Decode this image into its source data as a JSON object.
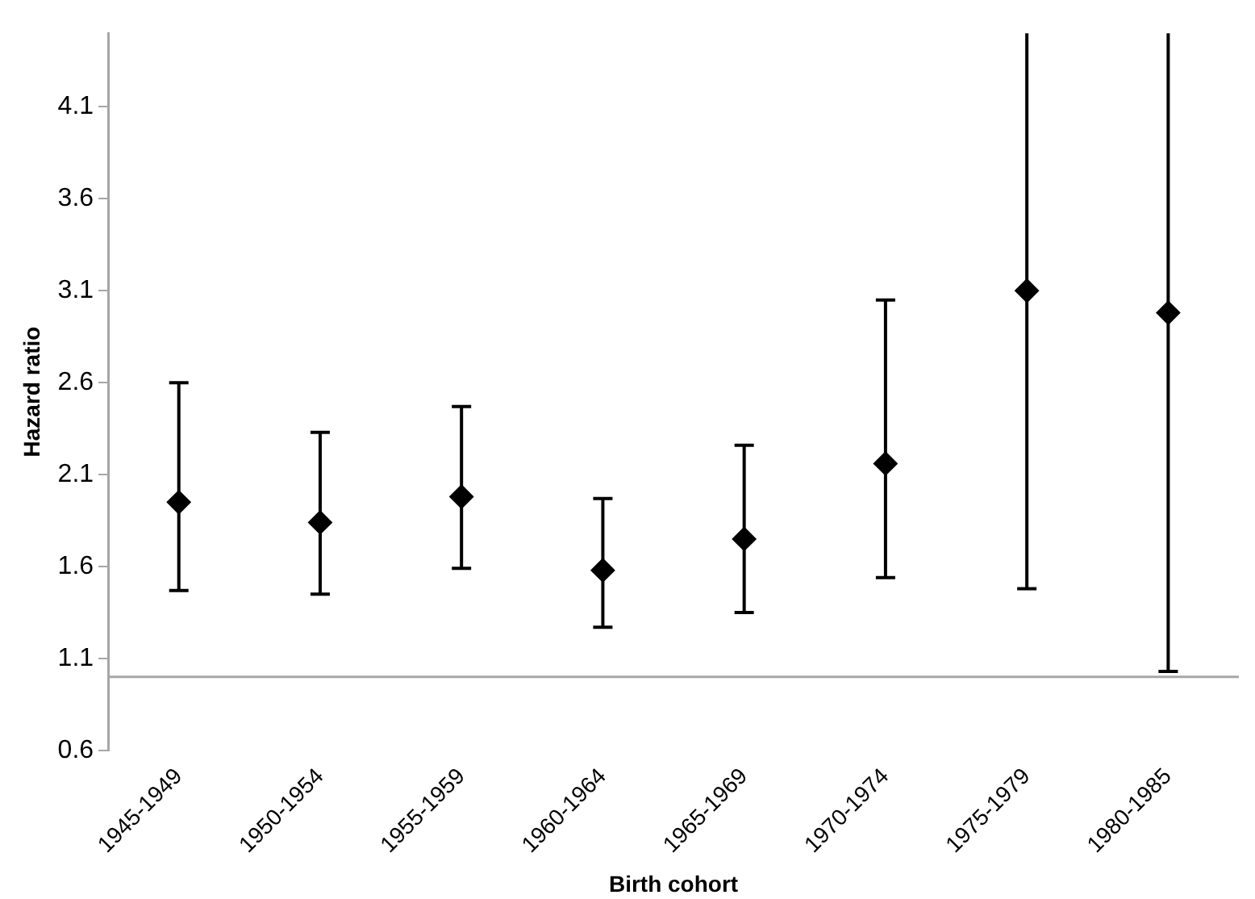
{
  "chart_data": {
    "type": "scatter",
    "xlabel": "Birth cohort",
    "ylabel": "Hazard ratio",
    "categories": [
      "1945-1949",
      "1950-1954",
      "1955-1959",
      "1960-1964",
      "1965-1969",
      "1970-1974",
      "1975-1979",
      "1980-1985"
    ],
    "series": [
      {
        "color": "#000000",
        "values": [
          1.95,
          1.84,
          1.98,
          1.58,
          1.75,
          2.16,
          3.1,
          2.98
        ],
        "errors": [
          [
            1.47,
            2.6
          ],
          [
            1.45,
            2.33
          ],
          [
            1.59,
            2.47
          ],
          [
            1.27,
            1.97
          ],
          [
            1.35,
            2.26
          ],
          [
            1.54,
            3.05
          ],
          [
            1.48,
            4.5
          ],
          [
            1.03,
            4.5
          ]
        ]
      }
    ],
    "ylim": [
      0.6,
      4.5
    ],
    "yticks": [
      0.6,
      1.1,
      1.6,
      2.1,
      2.6,
      3.1,
      3.6,
      4.1
    ],
    "ref_lines": [
      {
        "axis": "y",
        "value": 1,
        "color": "#a6a6a6"
      }
    ],
    "marker": "diamond",
    "grid": false,
    "legend": false
  }
}
